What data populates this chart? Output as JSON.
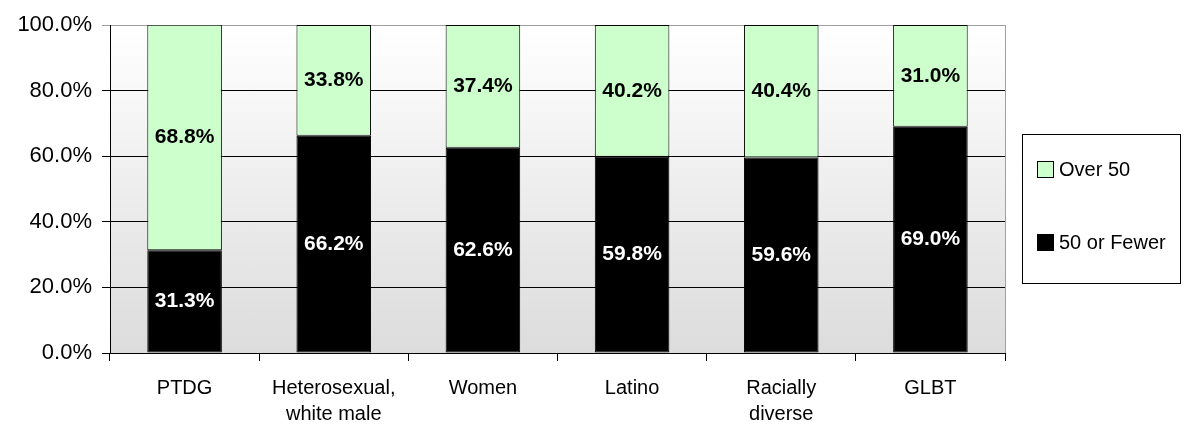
{
  "chart_data": {
    "type": "bar",
    "stacked": true,
    "categories": [
      "PTDG",
      "Heterosexual, white male",
      "Women",
      "Latino",
      "Racially diverse",
      "GLBT"
    ],
    "series": [
      {
        "name": "50 or Fewer",
        "color": "#000000",
        "values": [
          31.3,
          66.2,
          62.6,
          59.8,
          59.6,
          69.0
        ],
        "value_labels": [
          "31.3%",
          "66.2%",
          "62.6%",
          "59.8%",
          "59.6%",
          "69.0%"
        ]
      },
      {
        "name": "Over 50",
        "color": "#ccffcc",
        "values": [
          68.8,
          33.8,
          37.4,
          40.2,
          40.4,
          31.0
        ],
        "value_labels": [
          "68.8%",
          "33.8%",
          "37.4%",
          "40.2%",
          "40.4%",
          "31.0%"
        ]
      }
    ],
    "ylim": [
      0,
      100
    ],
    "yticks": [
      {
        "value": 0,
        "label": "0.0%"
      },
      {
        "value": 20,
        "label": "20.0%"
      },
      {
        "value": 40,
        "label": "40.0%"
      },
      {
        "value": 60,
        "label": "60.0%"
      },
      {
        "value": 80,
        "label": "80.0%"
      },
      {
        "value": 100,
        "label": "100.0%"
      }
    ],
    "grid": "y",
    "legend": "right"
  }
}
